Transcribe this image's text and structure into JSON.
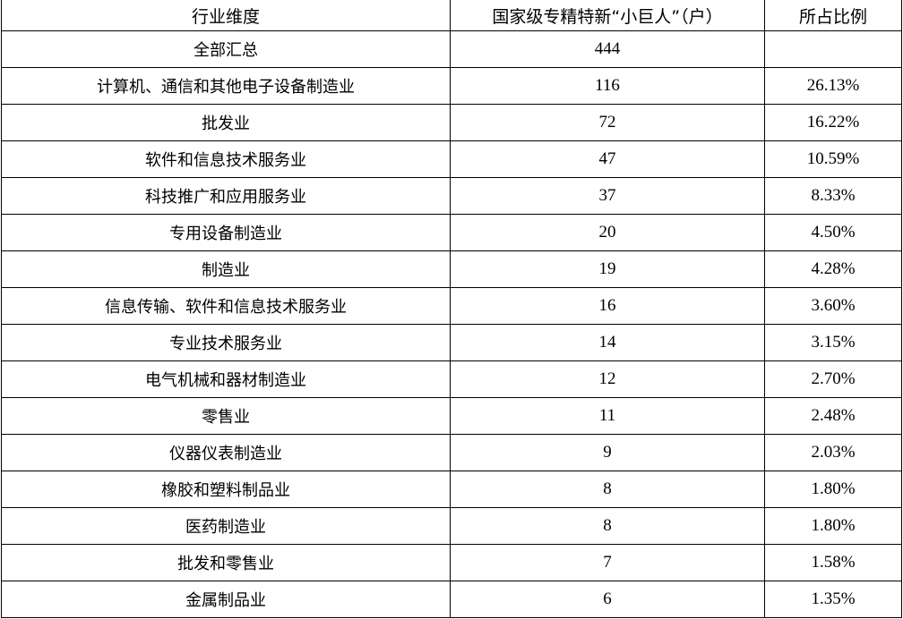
{
  "table": {
    "headers": [
      "行业维度",
      "国家级专精特新“小巨人”（户）",
      "所占比例"
    ],
    "rows": [
      {
        "industry": "全部汇总",
        "count": "444",
        "share": ""
      },
      {
        "industry": "计算机、通信和其他电子设备制造业",
        "count": "116",
        "share": "26.13%"
      },
      {
        "industry": "批发业",
        "count": "72",
        "share": "16.22%"
      },
      {
        "industry": "软件和信息技术服务业",
        "count": "47",
        "share": "10.59%"
      },
      {
        "industry": "科技推广和应用服务业",
        "count": "37",
        "share": "8.33%"
      },
      {
        "industry": "专用设备制造业",
        "count": "20",
        "share": "4.50%"
      },
      {
        "industry": "制造业",
        "count": "19",
        "share": "4.28%"
      },
      {
        "industry": "信息传输、软件和信息技术服务业",
        "count": "16",
        "share": "3.60%"
      },
      {
        "industry": "专业技术服务业",
        "count": "14",
        "share": "3.15%"
      },
      {
        "industry": "电气机械和器材制造业",
        "count": "12",
        "share": "2.70%"
      },
      {
        "industry": "零售业",
        "count": "11",
        "share": "2.48%"
      },
      {
        "industry": "仪器仪表制造业",
        "count": "9",
        "share": "2.03%"
      },
      {
        "industry": "橡胶和塑料制品业",
        "count": "8",
        "share": "1.80%"
      },
      {
        "industry": "医药制造业",
        "count": "8",
        "share": "1.80%"
      },
      {
        "industry": "批发和零售业",
        "count": "7",
        "share": "1.58%"
      },
      {
        "industry": "金属制品业",
        "count": "6",
        "share": "1.35%"
      }
    ]
  }
}
